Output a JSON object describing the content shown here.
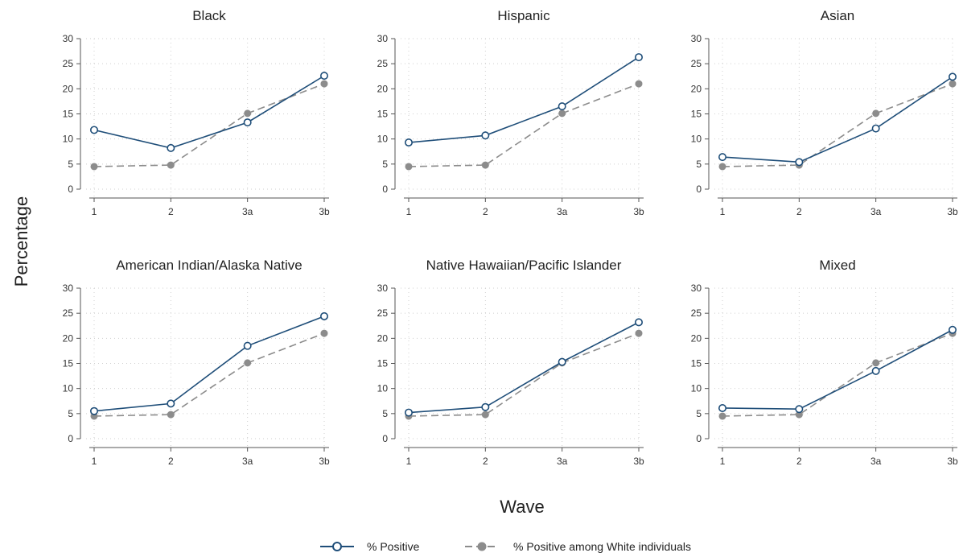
{
  "chart_data": {
    "type": "line",
    "xlabel": "Wave",
    "ylabel": "Percentage",
    "categories": [
      "1",
      "2",
      "3a",
      "3b"
    ],
    "ylim": [
      0,
      30
    ],
    "yticks": [
      0,
      5,
      10,
      15,
      20,
      25,
      30
    ],
    "grid": "dotted",
    "legend_position": "bottom",
    "legend": [
      {
        "label": "% Positive",
        "color": "#1f4e79",
        "marker": "hollow-circle",
        "line": "solid"
      },
      {
        "label": "% Positive among White individuals",
        "color": "#8c8c8c",
        "marker": "filled-circle",
        "line": "dashed"
      }
    ],
    "panels": [
      {
        "title": "Black",
        "series": [
          {
            "name": "% Positive",
            "values": [
              11.8,
              8.2,
              13.3,
              22.6
            ]
          },
          {
            "name": "% Positive among White individuals",
            "values": [
              4.5,
              4.8,
              15.1,
              21.0
            ]
          }
        ]
      },
      {
        "title": "Hispanic",
        "series": [
          {
            "name": "% Positive",
            "values": [
              9.3,
              10.7,
              16.5,
              26.3
            ]
          },
          {
            "name": "% Positive among White individuals",
            "values": [
              4.5,
              4.8,
              15.1,
              21.0
            ]
          }
        ]
      },
      {
        "title": "Asian",
        "series": [
          {
            "name": "% Positive",
            "values": [
              6.4,
              5.4,
              12.1,
              22.4
            ]
          },
          {
            "name": "% Positive among White individuals",
            "values": [
              4.5,
              4.8,
              15.1,
              21.0
            ]
          }
        ]
      },
      {
        "title": "American Indian/Alaska Native",
        "series": [
          {
            "name": "% Positive",
            "values": [
              5.5,
              7.0,
              18.5,
              24.4
            ]
          },
          {
            "name": "% Positive among White individuals",
            "values": [
              4.5,
              4.8,
              15.1,
              21.0
            ]
          }
        ]
      },
      {
        "title": "Native Hawaiian/Pacific Islander",
        "series": [
          {
            "name": "% Positive",
            "values": [
              5.2,
              6.3,
              15.3,
              23.2
            ]
          },
          {
            "name": "% Positive among White individuals",
            "values": [
              4.5,
              4.8,
              15.1,
              21.0
            ]
          }
        ]
      },
      {
        "title": "Mixed",
        "series": [
          {
            "name": "% Positive",
            "values": [
              6.1,
              5.9,
              13.5,
              21.7
            ]
          },
          {
            "name": "% Positive among White individuals",
            "values": [
              4.5,
              4.8,
              15.1,
              21.0
            ]
          }
        ]
      }
    ]
  }
}
